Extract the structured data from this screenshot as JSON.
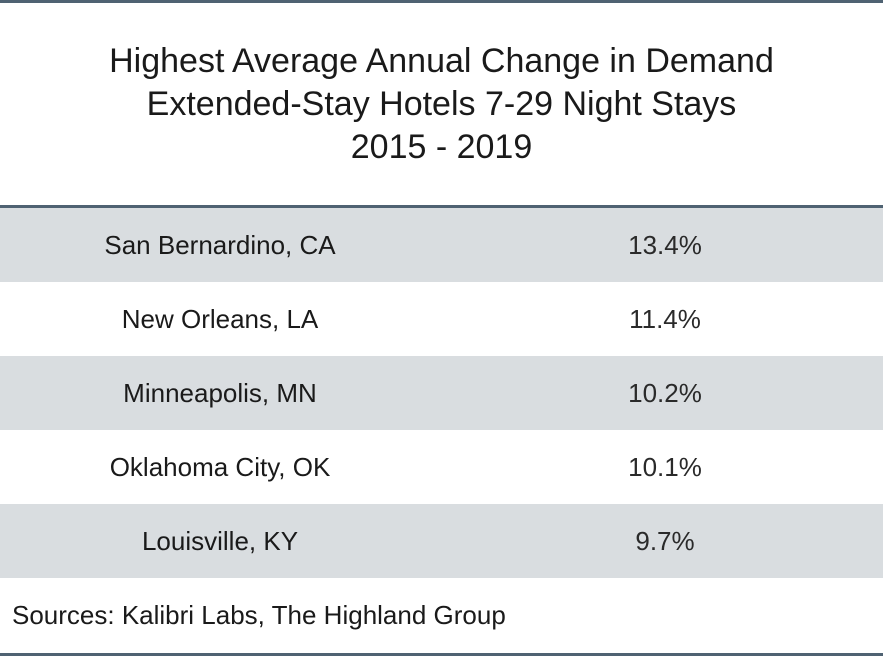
{
  "title": {
    "line1": "Highest Average Annual Change in Demand",
    "line2": "Extended-Stay Hotels 7-29 Night Stays",
    "line3": "2015 - 2019"
  },
  "chart_data": {
    "type": "table",
    "title": "Highest Average Annual Change in Demand Extended-Stay Hotels 7-29 Night Stays 2015 - 2019",
    "columns": [
      "",
      ""
    ],
    "rows": [
      {
        "city": "San Bernardino, CA",
        "value": "13.4%"
      },
      {
        "city": "New Orleans, LA",
        "value": "11.4%"
      },
      {
        "city": "Minneapolis, MN",
        "value": "10.2%"
      },
      {
        "city": "Oklahoma City, OK",
        "value": "10.1%"
      },
      {
        "city": "Louisville, KY",
        "value": "9.7%"
      }
    ]
  },
  "source": "Sources: Kalibri Labs, The Highland Group",
  "colors": {
    "rule": "#4f6272",
    "shaded_row": "#d9dde0"
  }
}
